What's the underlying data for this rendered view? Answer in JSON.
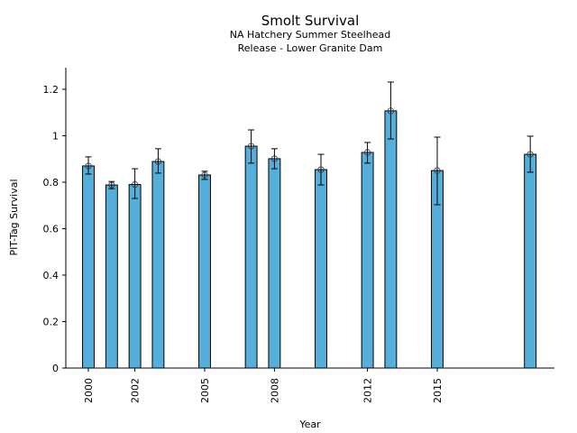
{
  "chart_data": {
    "type": "bar",
    "title": "Smolt Survival",
    "subtitle_lines": [
      "NA Hatchery Summer Steelhead",
      "Release - Lower Granite Dam"
    ],
    "xlabel": "Year",
    "ylabel": "PIT-Tag Survival",
    "xlim": [
      1999.03,
      2020.04
    ],
    "ylim": [
      0,
      1.293
    ],
    "grid": false,
    "bar_color": "#56aedb",
    "edge_color": "#000000",
    "bar_width": 0.5,
    "x_ticks": [
      2000,
      2002,
      2005,
      2008,
      2012,
      2015
    ],
    "x_tick_labels": [
      "2000",
      "2002",
      "2005",
      "2008",
      "2012",
      "2015"
    ],
    "y_ticks": [
      0,
      0.2,
      0.4,
      0.6,
      0.8,
      1,
      1.2
    ],
    "y_tick_labels": [
      "0",
      "0.2",
      "0.4",
      "0.6",
      "0.8",
      "1",
      "1.2"
    ],
    "series": [
      {
        "name": "PIT-Tag Survival",
        "x": [
          2000,
          2001,
          2002,
          2003,
          2005,
          2007,
          2008,
          2010,
          2012,
          2013,
          2015,
          2019
        ],
        "values": [
          0.87,
          0.788,
          0.79,
          0.889,
          0.831,
          0.955,
          0.901,
          0.854,
          0.928,
          1.107,
          0.85,
          0.92
        ],
        "err_high": [
          0.909,
          0.803,
          0.858,
          0.944,
          0.847,
          1.025,
          0.944,
          0.92,
          0.971,
          1.231,
          0.994,
          0.998
        ],
        "err_low": [
          0.835,
          0.772,
          0.73,
          0.839,
          0.812,
          0.882,
          0.858,
          0.788,
          0.882,
          0.986,
          0.703,
          0.843
        ]
      }
    ]
  }
}
